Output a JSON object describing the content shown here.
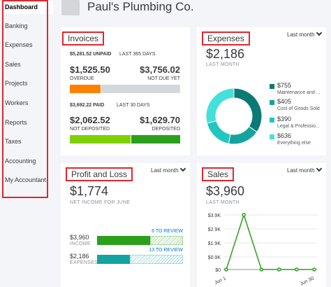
{
  "company": {
    "name": "Paul's Plumbing Co."
  },
  "sidebar": {
    "items": [
      {
        "label": "Dashboard"
      },
      {
        "label": "Banking"
      },
      {
        "label": "Expenses"
      },
      {
        "label": "Sales"
      },
      {
        "label": "Projects"
      },
      {
        "label": "Workers"
      },
      {
        "label": "Reports"
      },
      {
        "label": "Taxes"
      },
      {
        "label": "Accounting"
      },
      {
        "label": "My Accountant"
      }
    ]
  },
  "invoices": {
    "title": "Invoices",
    "unpaid_amount": "$5,281.52 UNPAID",
    "unpaid_period": "LAST 365 DAYS",
    "overdue_amount": "$1,525.50",
    "overdue_label": "OVERDUE",
    "notdue_amount": "$3,756.02",
    "notdue_label": "NOT DUE YET",
    "paid_amount": "$3,692.22 PAID",
    "paid_period": "LAST 30 DAYS",
    "notdeposited_amount": "$2,062.52",
    "notdeposited_label": "NOT DEPOSITED",
    "deposited_amount": "$1,629.70",
    "deposited_label": "DEPOSITED",
    "colors": {
      "overdue": "#ff8000",
      "notdue": "#d4d7dc",
      "notdeposited": "#7fd000",
      "deposited": "#2ca01c"
    }
  },
  "expenses": {
    "title": "Expenses",
    "dropdown": "Last month",
    "total": "$2,186",
    "period": "LAST MONTH",
    "legend": [
      {
        "amount": "$755",
        "label": "Maintenance and ...",
        "color": "#0b7a75",
        "value": 755
      },
      {
        "amount": "$405",
        "label": "Cost of Goods Sold",
        "color": "#15a3a0",
        "value": 405
      },
      {
        "amount": "$390",
        "label": "Legal & Professio...",
        "color": "#22c6c1",
        "value": 390
      },
      {
        "amount": "$636",
        "label": "Everything else",
        "color": "#44e0da",
        "value": 636
      }
    ]
  },
  "pnl": {
    "title": "Profit and Loss",
    "dropdown": "Last month",
    "net": "$1,774",
    "net_label": "NET INCOME FOR JUNE",
    "income_amount": "$3,960",
    "income_label": "INCOME",
    "income_review": "6 TO REVIEW",
    "expenses_amount": "$2,186",
    "expenses_label": "EXPENSES",
    "expenses_review": "13 TO REVIEW",
    "income_reviewed_fraction": 0.62,
    "expenses_reviewed_fraction": 0.38
  },
  "sales": {
    "title": "Sales",
    "dropdown": "Last month",
    "total": "$3,960",
    "period": "LAST MONTH",
    "chart_data": {
      "type": "line",
      "y_ticks": [
        "$3.9K",
        "$2.9K",
        "$1.9K",
        "$0.9K",
        "$0"
      ],
      "y_values": [
        3900,
        2900,
        1900,
        900,
        0
      ],
      "x_labels": [
        "Jun 1",
        "Jun 30"
      ],
      "points": [
        0,
        3900,
        0,
        0,
        0,
        0
      ],
      "ylim": [
        0,
        3900
      ],
      "color": "#2ca01c"
    }
  }
}
